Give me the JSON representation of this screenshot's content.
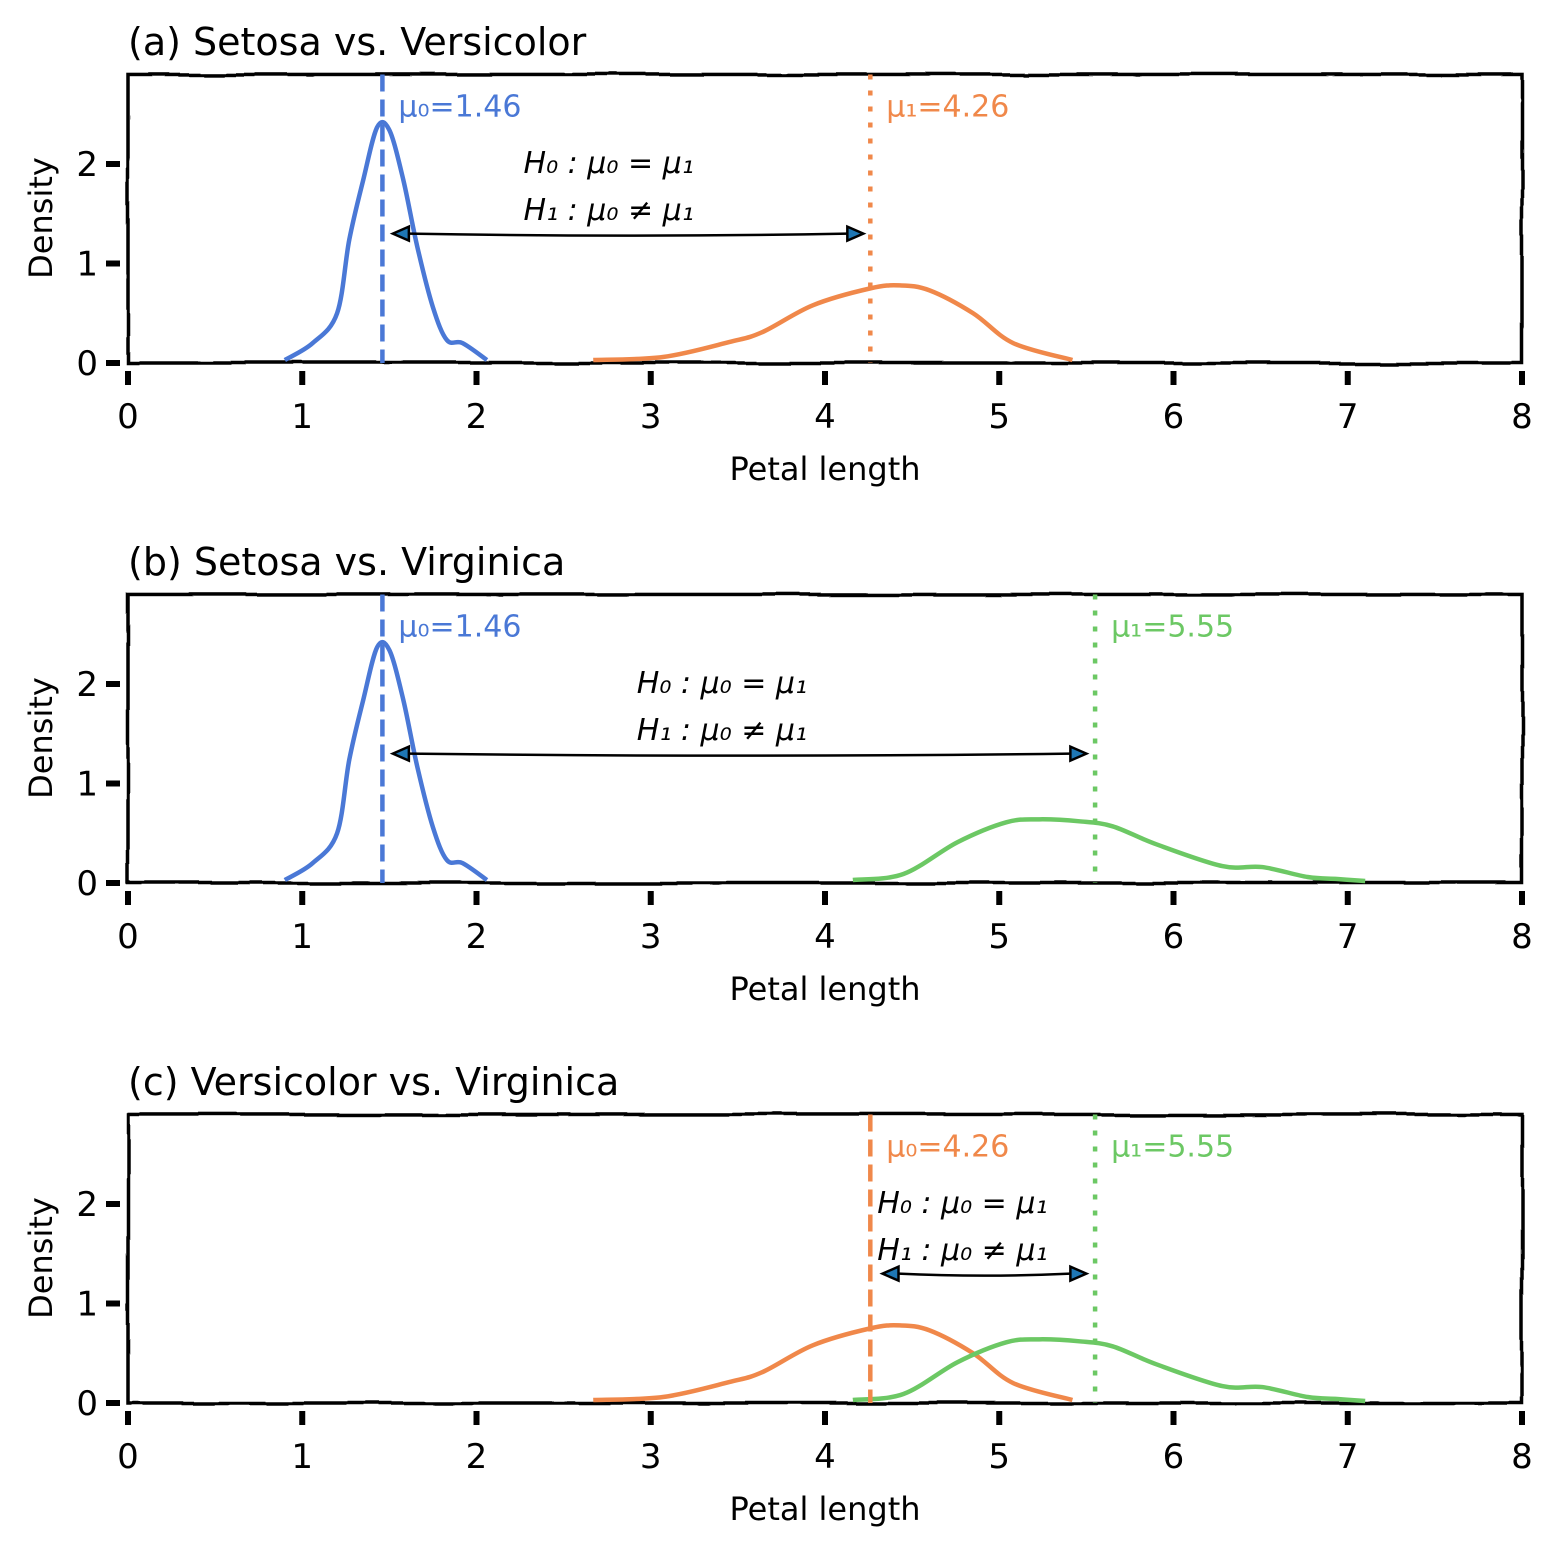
{
  "chart_data": [
    {
      "type": "line",
      "title": "(a) Setosa vs. Versicolor",
      "xlabel": "Petal length",
      "ylabel": "Density",
      "xlim": [
        0,
        8
      ],
      "ylim": [
        0,
        2.9
      ],
      "xticks": [
        "0",
        "1",
        "2",
        "3",
        "4",
        "5",
        "6",
        "7",
        "8"
      ],
      "yticks": [
        "0",
        "1",
        "2"
      ],
      "grid": false,
      "series": [
        {
          "color": "#4a78d6",
          "x": [
            0.9,
            1.06,
            1.2,
            1.27,
            1.35,
            1.43,
            1.5,
            1.58,
            1.66,
            1.75,
            1.83,
            1.92,
            2.06
          ],
          "y": [
            0.03,
            0.2,
            0.5,
            1.24,
            1.84,
            2.37,
            2.34,
            1.84,
            1.17,
            0.56,
            0.23,
            0.2,
            0.03
          ]
        },
        {
          "color": "#f0884a",
          "x": [
            2.67,
            3.07,
            3.45,
            3.64,
            3.93,
            4.26,
            4.43,
            4.6,
            4.85,
            5.08,
            5.42
          ],
          "y": [
            0.03,
            0.06,
            0.21,
            0.31,
            0.58,
            0.75,
            0.78,
            0.73,
            0.5,
            0.2,
            0.03
          ]
        }
      ],
      "means": [
        {
          "value": 1.46,
          "label": "μ₀=1.46",
          "color": "#4a78d6",
          "style": "dashed"
        },
        {
          "value": 4.26,
          "label": "μ₁=4.26",
          "color": "#f0884a",
          "style": "dotted"
        }
      ],
      "annotation": {
        "lines": [
          "H₀ : μ₀ = μ₁",
          "H₁ : μ₀ ≠ μ₁"
        ],
        "arrow_y": 1.3,
        "arrow_from": 1.52,
        "arrow_to": 4.22,
        "text_x": 2.27,
        "arrow_color": "#1f77b4"
      }
    },
    {
      "type": "line",
      "title": "(b) Setosa vs. Virginica",
      "xlabel": "Petal length",
      "ylabel": "Density",
      "xlim": [
        0,
        8
      ],
      "ylim": [
        0,
        2.9
      ],
      "xticks": [
        "0",
        "1",
        "2",
        "3",
        "4",
        "5",
        "6",
        "7",
        "8"
      ],
      "yticks": [
        "0",
        "1",
        "2"
      ],
      "grid": false,
      "series": [
        {
          "color": "#4a78d6",
          "x": [
            0.9,
            1.06,
            1.2,
            1.27,
            1.35,
            1.43,
            1.5,
            1.58,
            1.66,
            1.75,
            1.83,
            1.92,
            2.06
          ],
          "y": [
            0.03,
            0.2,
            0.5,
            1.24,
            1.84,
            2.37,
            2.34,
            1.84,
            1.17,
            0.56,
            0.23,
            0.2,
            0.03
          ]
        },
        {
          "color": "#6cc864",
          "x": [
            4.16,
            4.45,
            4.76,
            5.04,
            5.23,
            5.46,
            5.65,
            5.9,
            6.28,
            6.51,
            6.77,
            6.94,
            7.1
          ],
          "y": [
            0.03,
            0.09,
            0.41,
            0.61,
            0.64,
            0.62,
            0.57,
            0.39,
            0.17,
            0.16,
            0.06,
            0.04,
            0.02
          ]
        }
      ],
      "means": [
        {
          "value": 1.46,
          "label": "μ₀=1.46",
          "color": "#4a78d6",
          "style": "dashed"
        },
        {
          "value": 5.55,
          "label": "μ₁=5.55",
          "color": "#6cc864",
          "style": "dotted"
        }
      ],
      "annotation": {
        "lines": [
          "H₀ : μ₀ = μ₁",
          "H₁ : μ₀ ≠ μ₁"
        ],
        "arrow_y": 1.3,
        "arrow_from": 1.52,
        "arrow_to": 5.5,
        "text_x": 2.92,
        "arrow_color": "#1f77b4"
      }
    },
    {
      "type": "line",
      "title": "(c) Versicolor vs. Virginica",
      "xlabel": "Petal length",
      "ylabel": "Density",
      "xlim": [
        0,
        8
      ],
      "ylim": [
        0,
        2.9
      ],
      "xticks": [
        "0",
        "1",
        "2",
        "3",
        "4",
        "5",
        "6",
        "7",
        "8"
      ],
      "yticks": [
        "0",
        "1",
        "2"
      ],
      "grid": false,
      "series": [
        {
          "color": "#f0884a",
          "x": [
            2.67,
            3.07,
            3.45,
            3.64,
            3.93,
            4.26,
            4.43,
            4.6,
            4.85,
            5.08,
            5.42
          ],
          "y": [
            0.03,
            0.06,
            0.21,
            0.31,
            0.58,
            0.75,
            0.78,
            0.73,
            0.5,
            0.2,
            0.03
          ]
        },
        {
          "color": "#6cc864",
          "x": [
            4.16,
            4.45,
            4.76,
            5.04,
            5.23,
            5.46,
            5.65,
            5.9,
            6.28,
            6.51,
            6.77,
            6.94,
            7.1
          ],
          "y": [
            0.03,
            0.09,
            0.41,
            0.61,
            0.64,
            0.62,
            0.57,
            0.39,
            0.17,
            0.16,
            0.06,
            0.04,
            0.02
          ]
        }
      ],
      "means": [
        {
          "value": 4.26,
          "label": "μ₀=4.26",
          "color": "#f0884a",
          "style": "dashed"
        },
        {
          "value": 5.55,
          "label": "μ₁=5.55",
          "color": "#6cc864",
          "style": "dotted"
        }
      ],
      "annotation": {
        "lines": [
          "H₀ : μ₀ = μ₁",
          "H₁ : μ₀ ≠ μ₁"
        ],
        "arrow_y": 1.3,
        "arrow_from": 4.33,
        "arrow_to": 5.5,
        "text_x": 4.3,
        "arrow_color": "#1f77b4"
      }
    }
  ]
}
